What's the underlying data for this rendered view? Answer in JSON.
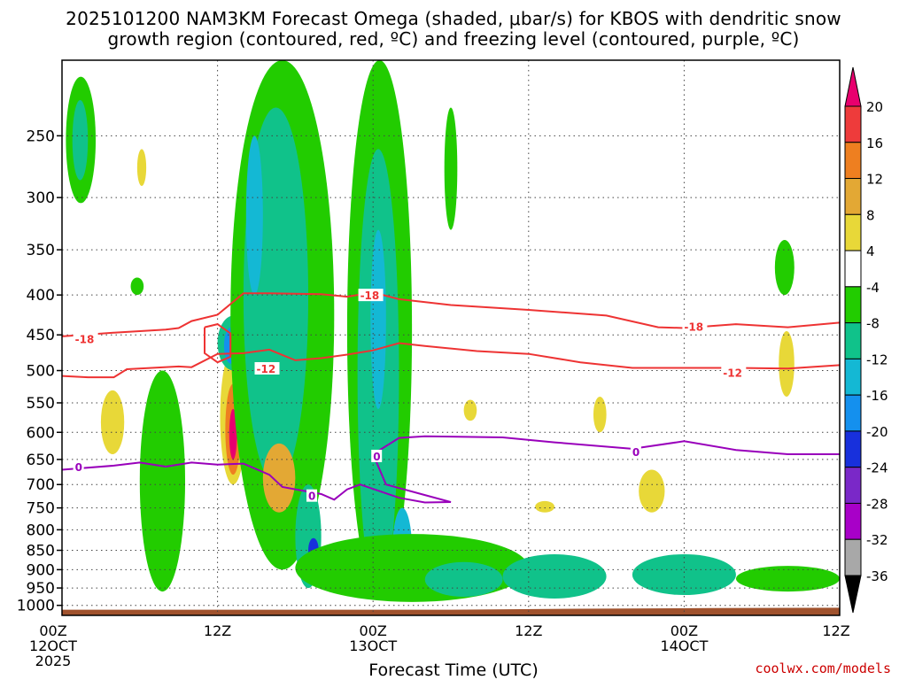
{
  "title_line1": "2025101200 NAM3KM Forecast Omega (shaded, μbar/s) for KBOS with dendritic snow",
  "title_line2": "growth region (contoured, red, ºC) and freezing level (contoured, purple, ºC)",
  "credit": "coolwx.com/models",
  "colors": {
    "dgz_contour": "#ee3333",
    "freezing_contour": "#9900bb",
    "ground": "#a0522d",
    "grid": "#444444"
  },
  "chart_data": {
    "type": "heatmap",
    "title": "2025101200 NAM3KM Forecast Omega (shaded, μbar/s) for KBOS with dendritic snow growth region (contoured, red, ºC) and freezing level (contoured, purple, ºC)",
    "xlabel": "Forecast Time (UTC)",
    "ylabel": "",
    "x_ticks": [
      {
        "hour": 0,
        "lines": [
          "00Z",
          "12OCT",
          "2025"
        ]
      },
      {
        "hour": 12,
        "lines": [
          "12Z"
        ]
      },
      {
        "hour": 24,
        "lines": [
          "00Z",
          "13OCT"
        ]
      },
      {
        "hour": 36,
        "lines": [
          "12Z"
        ]
      },
      {
        "hour": 48,
        "lines": [
          "00Z",
          "14OCT"
        ]
      },
      {
        "hour": 60,
        "lines": [
          "12Z"
        ]
      }
    ],
    "xlim": [
      0,
      60
    ],
    "y_scale": "log",
    "ylim": [
      1030,
      200
    ],
    "y_ticks": [
      250,
      300,
      350,
      400,
      450,
      500,
      550,
      600,
      650,
      700,
      750,
      800,
      850,
      900,
      950,
      1000
    ],
    "grid": true,
    "colorbar": {
      "unit": "μbar/s",
      "labels": [
        20,
        16,
        12,
        8,
        4,
        -4,
        -8,
        -12,
        -16,
        -20,
        -24,
        -28,
        -32,
        -36
      ],
      "bins": [
        {
          "from": 20,
          "to": 24,
          "color": "#e8006e"
        },
        {
          "from": 16,
          "to": 20,
          "color": "#ee3b3b"
        },
        {
          "from": 12,
          "to": 16,
          "color": "#ee7f20"
        },
        {
          "from": 8,
          "to": 12,
          "color": "#e3a834"
        },
        {
          "from": 4,
          "to": 8,
          "color": "#e8d838"
        },
        {
          "from": -4,
          "to": 4,
          "color": "#ffffff"
        },
        {
          "from": -8,
          "to": -4,
          "color": "#22cc00"
        },
        {
          "from": -12,
          "to": -8,
          "color": "#10c28a"
        },
        {
          "from": -16,
          "to": -12,
          "color": "#14b8d4"
        },
        {
          "from": -20,
          "to": -16,
          "color": "#1490ee"
        },
        {
          "from": -24,
          "to": -20,
          "color": "#1830dc"
        },
        {
          "from": -28,
          "to": -24,
          "color": "#7a28c8"
        },
        {
          "from": -32,
          "to": -28,
          "color": "#a800c8"
        },
        {
          "from": -36,
          "to": -32,
          "color": "#a8a8a8"
        },
        {
          "from": -40,
          "to": -36,
          "color": "#000000"
        }
      ]
    },
    "contours": [
      {
        "label": "-18",
        "kind": "dgz",
        "label_positions": [
          [
            1,
            456
          ],
          [
            23,
            401
          ],
          [
            48,
            440
          ]
        ],
        "points": [
          [
            0,
            452
          ],
          [
            4,
            447
          ],
          [
            8,
            443
          ],
          [
            9,
            441
          ],
          [
            10,
            432
          ],
          [
            12,
            424
          ],
          [
            14,
            398
          ],
          [
            16,
            398
          ],
          [
            20,
            399
          ],
          [
            22,
            402
          ],
          [
            24,
            397
          ],
          [
            26,
            405
          ],
          [
            30,
            412
          ],
          [
            36,
            418
          ],
          [
            42,
            425
          ],
          [
            46,
            440
          ],
          [
            48,
            441
          ],
          [
            52,
            436
          ],
          [
            56,
            440
          ],
          [
            58,
            437
          ],
          [
            60,
            434
          ]
        ]
      },
      {
        "label": "-12",
        "kind": "dgz",
        "label_positions": [
          [
            15,
            498
          ],
          [
            51,
            504
          ]
        ],
        "points": [
          [
            0,
            508
          ],
          [
            2,
            510
          ],
          [
            4,
            510
          ],
          [
            5,
            498
          ],
          [
            9,
            494
          ],
          [
            10,
            495
          ],
          [
            12,
            476
          ],
          [
            14,
            475
          ],
          [
            16,
            470
          ],
          [
            18,
            485
          ],
          [
            20,
            482
          ],
          [
            22,
            477
          ],
          [
            24,
            471
          ],
          [
            26,
            461
          ],
          [
            28,
            465
          ],
          [
            32,
            472
          ],
          [
            36,
            476
          ],
          [
            40,
            488
          ],
          [
            44,
            496
          ],
          [
            48,
            496
          ],
          [
            52,
            496
          ],
          [
            56,
            497
          ],
          [
            60,
            492
          ]
        ]
      },
      {
        "label": "-12",
        "kind": "dgz",
        "label_positions": [],
        "points": [
          [
            11,
            440
          ],
          [
            12,
            436
          ],
          [
            13,
            448
          ],
          [
            13,
            480
          ],
          [
            12,
            488
          ],
          [
            11,
            475
          ],
          [
            11,
            440
          ]
        ]
      },
      {
        "label": "0",
        "kind": "freezing",
        "label_positions": [
          [
            1,
            666
          ],
          [
            19,
            725
          ],
          [
            24,
            645
          ],
          [
            44,
            637
          ]
        ],
        "points": [
          [
            0,
            670
          ],
          [
            4,
            662
          ],
          [
            6,
            656
          ],
          [
            8,
            664
          ],
          [
            10,
            656
          ],
          [
            12,
            660
          ],
          [
            14,
            658
          ],
          [
            16,
            680
          ],
          [
            17,
            705
          ],
          [
            20,
            720
          ],
          [
            21,
            732
          ],
          [
            22,
            710
          ],
          [
            23,
            700
          ],
          [
            26,
            728
          ],
          [
            28,
            738
          ],
          [
            30,
            737
          ],
          [
            28,
            722
          ],
          [
            25,
            700
          ],
          [
            24,
            640
          ],
          [
            26,
            610
          ],
          [
            28,
            607
          ],
          [
            34,
            609
          ],
          [
            38,
            618
          ],
          [
            44,
            630
          ],
          [
            48,
            616
          ],
          [
            52,
            632
          ],
          [
            56,
            640
          ],
          [
            60,
            640
          ]
        ]
      }
    ],
    "omega_cells": [
      {
        "x0": 0.3,
        "x1": 2.6,
        "p_top": 210,
        "p_bot": 305,
        "value": -6
      },
      {
        "x0": 0.8,
        "x1": 2.0,
        "p_top": 225,
        "p_bot": 285,
        "value": -10
      },
      {
        "x0": 3.0,
        "x1": 4.8,
        "p_top": 530,
        "p_bot": 640,
        "value": 6
      },
      {
        "x0": 6.0,
        "x1": 9.5,
        "p_top": 500,
        "p_bot": 960,
        "value": -6
      },
      {
        "x0": 12.2,
        "x1": 14.2,
        "p_top": 470,
        "p_bot": 700,
        "value": 6
      },
      {
        "x0": 12.6,
        "x1": 13.8,
        "p_top": 520,
        "p_bot": 680,
        "value": 12
      },
      {
        "x0": 12.9,
        "x1": 13.5,
        "p_top": 560,
        "p_bot": 650,
        "value": 21
      },
      {
        "x0": 12.0,
        "x1": 14.5,
        "p_top": 425,
        "p_bot": 500,
        "value": -10
      },
      {
        "x0": 12.5,
        "x1": 13.6,
        "p_top": 440,
        "p_bot": 490,
        "value": -17
      },
      {
        "x0": 13.0,
        "x1": 21.0,
        "p_top": 200,
        "p_bot": 900,
        "value": -6
      },
      {
        "x0": 14.0,
        "x1": 19.0,
        "p_top": 230,
        "p_bot": 700,
        "value": -10
      },
      {
        "x0": 14.2,
        "x1": 15.5,
        "p_top": 250,
        "p_bot": 400,
        "value": -14
      },
      {
        "x0": 15.5,
        "x1": 18.0,
        "p_top": 620,
        "p_bot": 760,
        "value": 8
      },
      {
        "x0": 18.0,
        "x1": 20.0,
        "p_top": 700,
        "p_bot": 950,
        "value": -11
      },
      {
        "x0": 19.0,
        "x1": 19.8,
        "p_top": 820,
        "p_bot": 880,
        "value": -22
      },
      {
        "x0": 22.0,
        "x1": 27.0,
        "p_top": 200,
        "p_bot": 980,
        "value": -6
      },
      {
        "x0": 22.8,
        "x1": 26.0,
        "p_top": 260,
        "p_bot": 980,
        "value": -10
      },
      {
        "x0": 23.8,
        "x1": 25.0,
        "p_top": 330,
        "p_bot": 560,
        "value": -14
      },
      {
        "x0": 25.5,
        "x1": 27.0,
        "p_top": 750,
        "p_bot": 960,
        "value": -14
      },
      {
        "x0": 18.0,
        "x1": 36.0,
        "p_top": 810,
        "p_bot": 990,
        "value": -7
      },
      {
        "x0": 28.0,
        "x1": 34.0,
        "p_top": 880,
        "p_bot": 975,
        "value": -10
      },
      {
        "x0": 34.0,
        "x1": 42.0,
        "p_top": 860,
        "p_bot": 980,
        "value": -10
      },
      {
        "x0": 44.0,
        "x1": 52.0,
        "p_top": 860,
        "p_bot": 970,
        "value": -9
      },
      {
        "x0": 52.0,
        "x1": 60.0,
        "p_top": 890,
        "p_bot": 960,
        "value": -6
      },
      {
        "x0": 44.5,
        "x1": 46.5,
        "p_top": 670,
        "p_bot": 760,
        "value": 6
      },
      {
        "x0": 55.0,
        "x1": 56.5,
        "p_top": 340,
        "p_bot": 400,
        "value": -6
      },
      {
        "x0": 55.3,
        "x1": 56.5,
        "p_top": 445,
        "p_bot": 540,
        "value": 5
      },
      {
        "x0": 29.5,
        "x1": 30.5,
        "p_top": 230,
        "p_bot": 330,
        "value": -6
      },
      {
        "x0": 5.8,
        "x1": 6.5,
        "p_top": 260,
        "p_bot": 290,
        "value": 5
      },
      {
        "x0": 5.3,
        "x1": 6.3,
        "p_top": 380,
        "p_bot": 400,
        "value": -5
      },
      {
        "x0": 41.0,
        "x1": 42.0,
        "p_top": 540,
        "p_bot": 600,
        "value": 5
      },
      {
        "x0": 36.5,
        "x1": 38.0,
        "p_top": 735,
        "p_bot": 760,
        "value": 5
      },
      {
        "x0": 31.0,
        "x1": 32.0,
        "p_top": 545,
        "p_bot": 580,
        "value": 5
      }
    ],
    "ground": [
      [
        0,
        1030,
        1013
      ],
      [
        10,
        1030,
        1013
      ],
      [
        20,
        1030,
        1013
      ],
      [
        30,
        1030,
        1013
      ],
      [
        40,
        1030,
        1010
      ],
      [
        50,
        1030,
        1008
      ],
      [
        60,
        1030,
        1007
      ]
    ]
  }
}
